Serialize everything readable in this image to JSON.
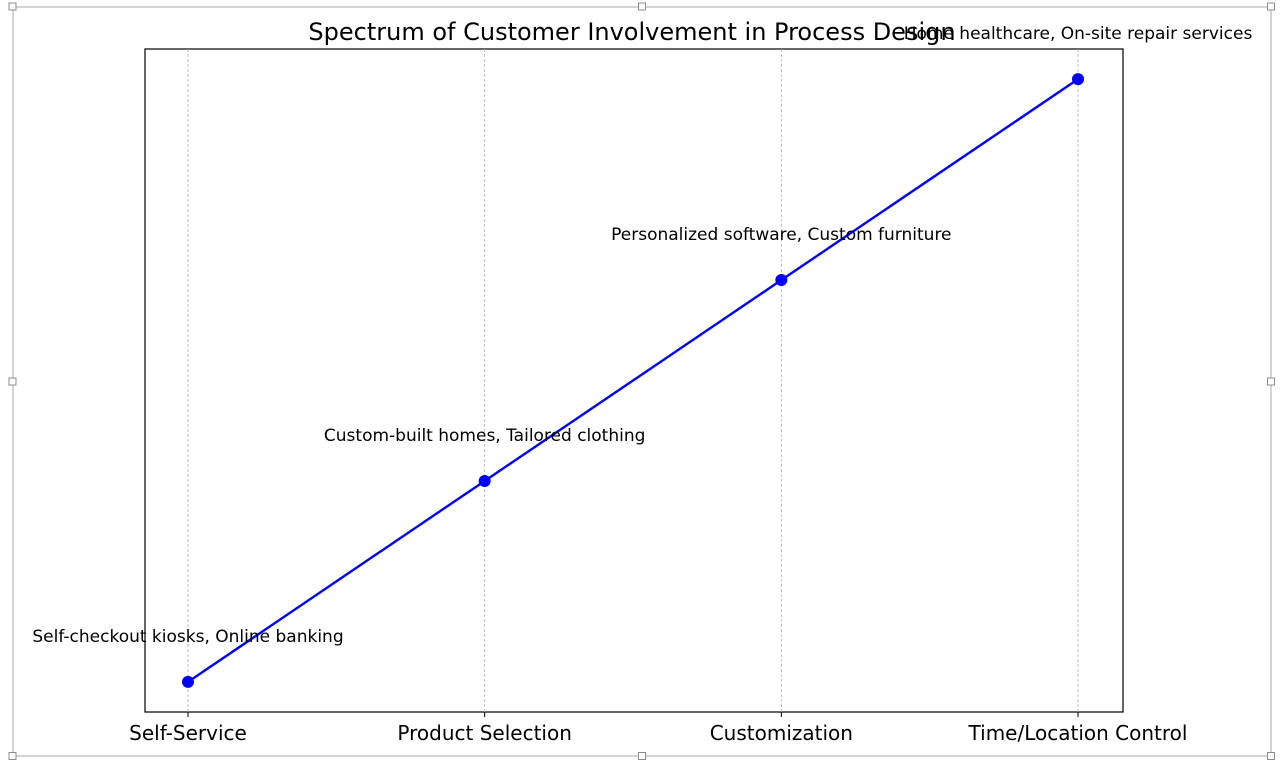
{
  "chart_data": {
    "type": "line",
    "title": "Spectrum of Customer Involvement in Process Design",
    "xlabel": "",
    "ylabel": "",
    "categories": [
      "Self-Service",
      "Product Selection",
      "Customization",
      "Time/Location Control"
    ],
    "series": [
      {
        "values": [
          1,
          2,
          3,
          4
        ],
        "color": "#0000ff",
        "marker": "circle"
      }
    ],
    "annotations": [
      "Self-checkout kiosks, Online banking",
      "Custom-built homes, Tailored clothing",
      "Personalized software, Custom furniture",
      "Home healthcare, On-site repair services"
    ],
    "ylim": [
      0.85,
      4.15
    ],
    "grid": "vertical-dashed",
    "legend": "none"
  }
}
